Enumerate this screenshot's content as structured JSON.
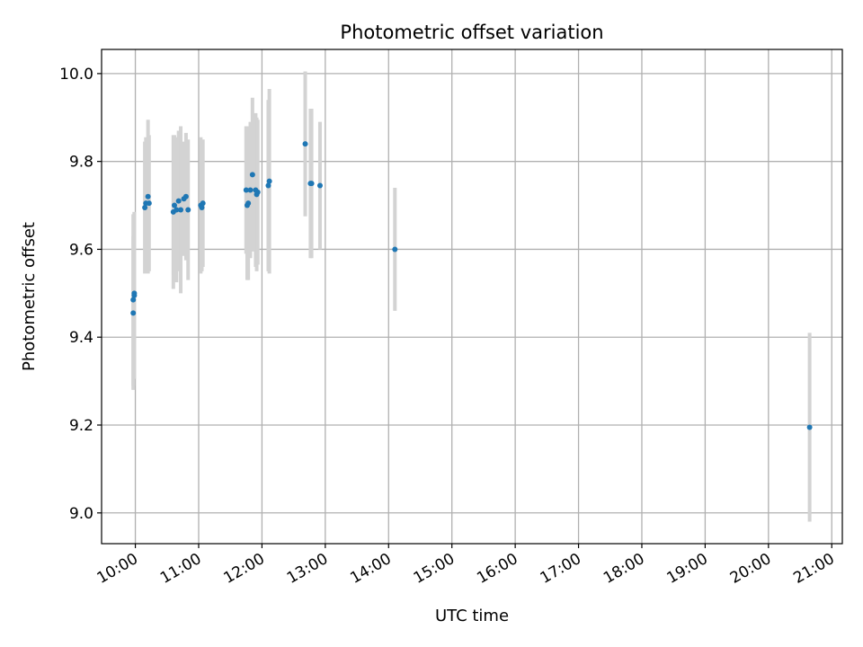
{
  "chart_data": {
    "type": "scatter",
    "title": "Photometric offset variation",
    "xlabel": "UTC time",
    "ylabel": "Photometric offset",
    "xlim": [
      "09:28",
      "21:10"
    ],
    "ylim": [
      8.93,
      10.055
    ],
    "x_ticks": [
      "10:00",
      "11:00",
      "12:00",
      "13:00",
      "14:00",
      "15:00",
      "16:00",
      "17:00",
      "18:00",
      "19:00",
      "20:00",
      "21:00"
    ],
    "y_ticks": [
      9.0,
      9.2,
      9.4,
      9.6,
      9.8,
      10.0
    ],
    "grid": true,
    "colors": {
      "point": "#1f77b4",
      "errorbar": "#d3d3d3",
      "grid": "#b0b0b0"
    },
    "series": [
      {
        "points": [
          {
            "x": "09:58",
            "y": 9.455,
            "yerr": 0.175
          },
          {
            "x": "09:58",
            "y": 9.485,
            "yerr": 0.195
          },
          {
            "x": "09:59",
            "y": 9.495,
            "yerr": 0.19
          },
          {
            "x": "09:59",
            "y": 9.5,
            "yerr": 0.185
          },
          {
            "x": "10:09",
            "y": 9.695,
            "yerr": 0.15
          },
          {
            "x": "10:10",
            "y": 9.705,
            "yerr": 0.15
          },
          {
            "x": "10:12",
            "y": 9.72,
            "yerr": 0.175
          },
          {
            "x": "10:13",
            "y": 9.705,
            "yerr": 0.155
          },
          {
            "x": "10:36",
            "y": 9.685,
            "yerr": 0.175
          },
          {
            "x": "10:37",
            "y": 9.7,
            "yerr": 0.16
          },
          {
            "x": "10:39",
            "y": 9.69,
            "yerr": 0.165
          },
          {
            "x": "10:41",
            "y": 9.71,
            "yerr": 0.16
          },
          {
            "x": "10:43",
            "y": 9.69,
            "yerr": 0.19
          },
          {
            "x": "10:46",
            "y": 9.715,
            "yerr": 0.13
          },
          {
            "x": "10:48",
            "y": 9.72,
            "yerr": 0.145
          },
          {
            "x": "10:50",
            "y": 9.69,
            "yerr": 0.16
          },
          {
            "x": "11:02",
            "y": 9.7,
            "yerr": 0.155
          },
          {
            "x": "11:03",
            "y": 9.695,
            "yerr": 0.145
          },
          {
            "x": "11:04",
            "y": 9.705,
            "yerr": 0.145
          },
          {
            "x": "11:45",
            "y": 9.735,
            "yerr": 0.145
          },
          {
            "x": "11:46",
            "y": 9.7,
            "yerr": 0.17
          },
          {
            "x": "11:47",
            "y": 9.705,
            "yerr": 0.175
          },
          {
            "x": "11:49",
            "y": 9.735,
            "yerr": 0.155
          },
          {
            "x": "11:51",
            "y": 9.77,
            "yerr": 0.175
          },
          {
            "x": "11:54",
            "y": 9.735,
            "yerr": 0.175
          },
          {
            "x": "11:55",
            "y": 9.725,
            "yerr": 0.175
          },
          {
            "x": "11:56",
            "y": 9.73,
            "yerr": 0.165
          },
          {
            "x": "12:06",
            "y": 9.745,
            "yerr": 0.195
          },
          {
            "x": "12:07",
            "y": 9.755,
            "yerr": 0.21
          },
          {
            "x": "12:41",
            "y": 9.84,
            "yerr": 0.165
          },
          {
            "x": "12:46",
            "y": 9.75,
            "yerr": 0.17
          },
          {
            "x": "12:47",
            "y": 9.75,
            "yerr": 0.17
          },
          {
            "x": "12:55",
            "y": 9.745,
            "yerr": 0.145
          },
          {
            "x": "14:06",
            "y": 9.6,
            "yerr": 0.14
          },
          {
            "x": "20:39",
            "y": 9.195,
            "yerr": 0.215
          }
        ]
      }
    ]
  }
}
